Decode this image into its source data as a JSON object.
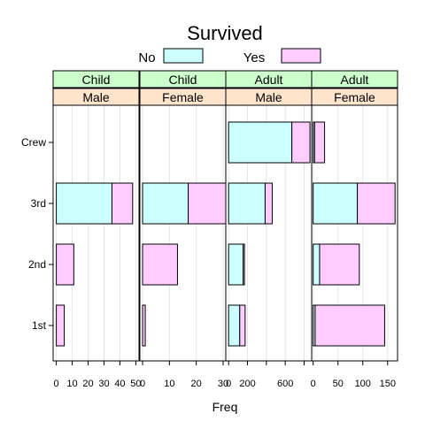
{
  "chart_data": {
    "type": "bar",
    "orientation": "horizontal",
    "stacked": true,
    "title": "Survived",
    "xlabel": "Freq",
    "ylabel": "",
    "categories": [
      "Crew",
      "3rd",
      "2nd",
      "1st"
    ],
    "legend": {
      "placement": "top",
      "items": [
        {
          "label": "No",
          "color": "#ccffff"
        },
        {
          "label": "Yes",
          "color": "#ffccff"
        }
      ]
    },
    "grid": "vertical",
    "panels": [
      {
        "strip_top": "Child",
        "strip_bottom": "Male",
        "xlim": [
          -2,
          52
        ],
        "ticks": [
          0,
          10,
          20,
          30,
          40,
          50
        ],
        "values": {
          "No": [
            0,
            35,
            0,
            0
          ],
          "Yes": [
            0,
            13,
            11,
            5
          ]
        }
      },
      {
        "strip_top": "Child",
        "strip_bottom": "Female",
        "xlim": [
          -1,
          31
        ],
        "ticks": [
          0,
          10,
          20,
          30
        ],
        "values": {
          "No": [
            0,
            17,
            0,
            0
          ],
          "Yes": [
            0,
            14,
            13,
            1
          ]
        }
      },
      {
        "strip_top": "Adult",
        "strip_bottom": "Male",
        "xlim": [
          -30,
          880
        ],
        "ticks": [
          0,
          200,
          600
        ],
        "minor_ticks": [
          400,
          800
        ],
        "values": {
          "No": [
            670,
            387,
            154,
            118
          ],
          "Yes": [
            192,
            75,
            14,
            57
          ]
        }
      },
      {
        "strip_top": "Adult",
        "strip_bottom": "Female",
        "xlim": [
          -3,
          170
        ],
        "ticks": [
          0,
          50,
          100,
          150
        ],
        "values": {
          "No": [
            3,
            89,
            13,
            4
          ],
          "Yes": [
            20,
            76,
            80,
            140
          ]
        }
      }
    ],
    "colors": {
      "no_fill": "#ccffff",
      "yes_fill": "#ffccff",
      "strip_top": "#ccffcc",
      "strip_bottom": "#ffe5cc",
      "grid": "#e6e6e6"
    }
  }
}
